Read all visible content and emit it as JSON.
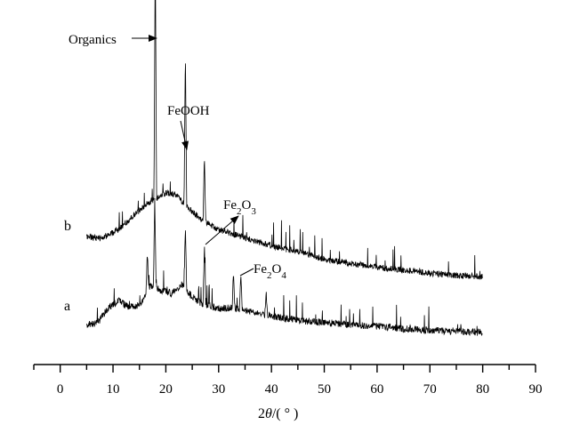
{
  "chart_data": {
    "type": "line",
    "title": "",
    "xlabel": "2θ/(°)",
    "ylabel": "",
    "xlim": [
      -5,
      90
    ],
    "x_ticks": [
      "0",
      "10",
      "20",
      "30",
      "40",
      "50",
      "60",
      "70",
      "80",
      "90"
    ],
    "y_axis_shown": false,
    "grid": false,
    "legend": "none",
    "series": [
      {
        "name": "b",
        "x_range": [
          5,
          80
        ],
        "profile": [
          [
            5,
            0.62
          ],
          [
            8,
            0.6
          ],
          [
            11,
            0.72
          ],
          [
            14,
            0.92
          ],
          [
            17,
            1.1
          ],
          [
            20,
            1.22
          ],
          [
            22,
            1.2
          ],
          [
            24,
            1.03
          ],
          [
            27,
            0.84
          ],
          [
            30,
            0.72
          ],
          [
            35,
            0.61
          ],
          [
            40,
            0.5
          ],
          [
            45,
            0.42
          ],
          [
            50,
            0.32
          ],
          [
            55,
            0.26
          ],
          [
            60,
            0.21
          ],
          [
            65,
            0.17
          ],
          [
            70,
            0.13
          ],
          [
            75,
            0.1
          ],
          [
            80,
            0.08
          ]
        ],
        "peaks": [
          [
            18,
            3.35
          ],
          [
            23.7,
            2.1
          ],
          [
            27.3,
            0.9
          ]
        ]
      },
      {
        "name": "a",
        "x_range": [
          5,
          80
        ],
        "profile": [
          [
            5,
            0.06
          ],
          [
            7,
            0.08
          ],
          [
            9,
            0.28
          ],
          [
            11,
            0.4
          ],
          [
            13,
            0.3
          ],
          [
            15,
            0.33
          ],
          [
            17,
            0.6
          ],
          [
            19,
            0.55
          ],
          [
            21,
            0.5
          ],
          [
            23,
            0.62
          ],
          [
            25,
            0.45
          ],
          [
            27,
            0.35
          ],
          [
            30,
            0.28
          ],
          [
            33,
            0.3
          ],
          [
            35,
            0.26
          ],
          [
            40,
            0.18
          ],
          [
            45,
            0.12
          ],
          [
            50,
            0.09
          ],
          [
            55,
            0.06
          ],
          [
            60,
            0.04
          ],
          [
            65,
            0.0
          ],
          [
            70,
            -0.02
          ],
          [
            75,
            -0.03
          ],
          [
            80,
            -0.05
          ]
        ],
        "peaks": [
          [
            16.5,
            0.55
          ],
          [
            17.9,
            1.3
          ],
          [
            23.7,
            0.9
          ],
          [
            27.3,
            0.85
          ],
          [
            32.8,
            0.5
          ],
          [
            34.2,
            0.55
          ],
          [
            39,
            0.3
          ]
        ]
      }
    ],
    "annotations": [
      {
        "text": "Organics",
        "x": 18
      },
      {
        "text": "FeOOH",
        "x": 23.7
      },
      {
        "text": "Fe2O3",
        "x": 27.3
      },
      {
        "text": "Fe2O4",
        "x": 33.5
      }
    ]
  }
}
